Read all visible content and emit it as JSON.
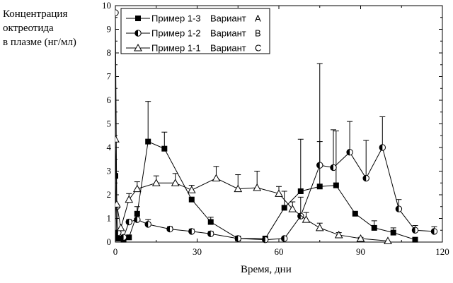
{
  "chart_data": {
    "type": "line",
    "ylabel_lines": [
      "Концентрация",
      "октреотида",
      "в плазме (нг/мл)"
    ],
    "xlabel": "Время, дни",
    "xlim": [
      0,
      120
    ],
    "ylim": [
      0,
      10
    ],
    "xticks": [
      0,
      30,
      60,
      90,
      120
    ],
    "yticks": [
      0,
      1,
      2,
      3,
      4,
      5,
      6,
      7,
      8,
      9,
      10
    ],
    "legend_position": "top-left",
    "series": [
      {
        "name": "Пример 1-3",
        "variant_label": "Вариант",
        "variant": "A",
        "marker": "square-filled",
        "x": [
          0,
          0.5,
          1,
          3,
          5,
          8,
          12,
          18,
          28,
          35,
          45,
          55,
          62,
          68,
          75,
          81,
          88,
          95,
          102,
          110
        ],
        "y": [
          2.8,
          0.3,
          0.15,
          0.1,
          0.2,
          1.2,
          4.25,
          3.95,
          1.8,
          0.85,
          0.15,
          0.15,
          1.45,
          2.15,
          2.35,
          2.4,
          1.2,
          0.6,
          0.4,
          0.1
        ],
        "err": [
          0,
          0,
          0,
          0,
          0,
          0.3,
          1.7,
          0.7,
          0,
          0.2,
          0,
          0,
          0.7,
          2.2,
          5.2,
          2.3,
          0,
          0.3,
          0.2,
          0
        ]
      },
      {
        "name": "Пример 1-2",
        "variant_label": "Вариант",
        "variant": "B",
        "marker": "circle-half",
        "x": [
          0,
          0.5,
          1,
          3,
          5,
          8,
          12,
          20,
          28,
          35,
          45,
          55,
          62,
          68,
          75,
          80,
          86,
          92,
          98,
          104,
          110,
          117
        ],
        "y": [
          9.7,
          1.5,
          0.4,
          0.2,
          0.85,
          0.95,
          0.75,
          0.55,
          0.45,
          0.35,
          0.15,
          0.1,
          0.15,
          1.1,
          3.25,
          3.15,
          3.8,
          2.7,
          4.0,
          1.4,
          0.5,
          0.45
        ],
        "err": [
          0,
          0,
          0,
          0,
          0.1,
          0.15,
          0.2,
          0.1,
          0.1,
          0.1,
          0,
          0,
          0,
          0.8,
          1.0,
          1.6,
          1.3,
          1.6,
          1.3,
          0.4,
          0.2,
          0.2
        ]
      },
      {
        "name": "Пример 1-1",
        "variant_label": "Вариант",
        "variant": "C",
        "marker": "triangle-open",
        "x": [
          0,
          0.5,
          2,
          5,
          8,
          15,
          22,
          28,
          37,
          45,
          52,
          60,
          65,
          70,
          75,
          82,
          90,
          100
        ],
        "y": [
          4.35,
          1.6,
          0.6,
          1.8,
          2.25,
          2.5,
          2.5,
          2.2,
          2.7,
          2.25,
          2.3,
          2.05,
          1.4,
          0.95,
          0.6,
          0.3,
          0.15,
          0.05
        ],
        "err": [
          0,
          0,
          0,
          0.25,
          0.3,
          0.3,
          0.4,
          0.2,
          0.5,
          0.6,
          0.7,
          0.3,
          0.3,
          0.3,
          0.2,
          0.1,
          0.05,
          0
        ]
      }
    ]
  }
}
